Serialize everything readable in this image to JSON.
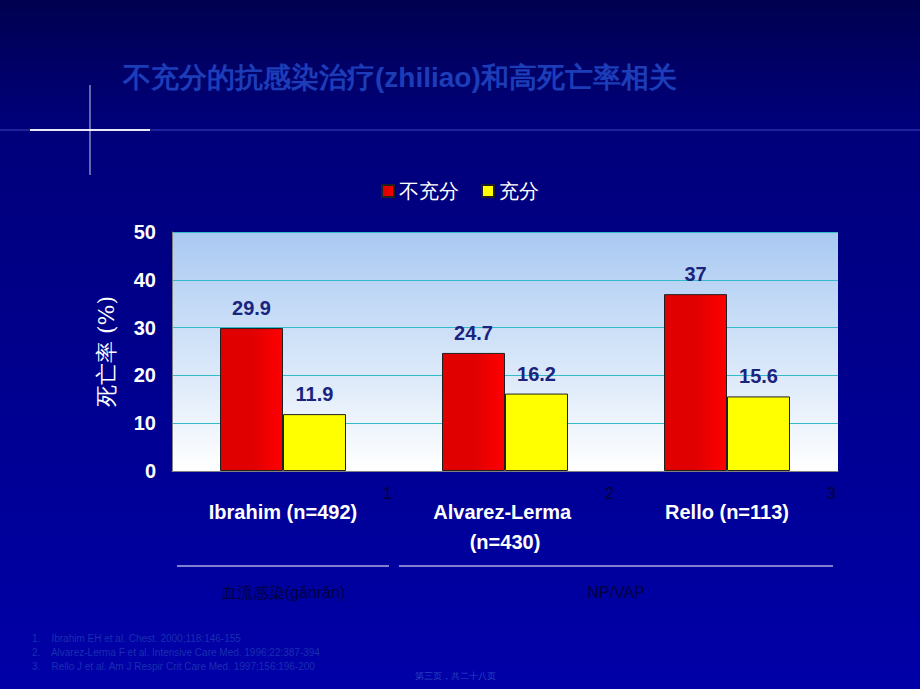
{
  "chart_data": {
    "type": "bar",
    "title": "不充分的抗感染治疗(zhiliao)和高死亡率相关",
    "y_label": "死亡率 (%)",
    "categories": [
      "Ibrahim (n=492)",
      "Alvarez-Lerma (n=430)",
      "Rello (n=113)"
    ],
    "category_notes": [
      "1",
      "2",
      "3"
    ],
    "group_labels": [
      {
        "label": "血流感染(gǎnrǎn)",
        "span": 1
      },
      {
        "label": "NP/VAP",
        "span": 2
      }
    ],
    "series": [
      {
        "name": "不充分",
        "color": "#e00000",
        "values": [
          29.9,
          24.7,
          37
        ]
      },
      {
        "name": "充分",
        "color": "#ffff00",
        "values": [
          11.9,
          16.2,
          15.6
        ]
      }
    ],
    "ylim": [
      0,
      50
    ],
    "yticks": [
      0,
      10,
      20,
      30,
      40,
      50
    ],
    "grid": true,
    "legend": "top",
    "data_labels": true
  },
  "footnotes": [
    "1.    Ibrahim EH et al. Chest. 2000;118:146-155",
    "2.    Alvarez-Lerma F et al. Intensive Care Med. 1996;22:387-394",
    "3.    Rello J et al. Am J Respir Crit Care Med. 1997;156:196-200"
  ],
  "page_footer": "第三页，共二十八页"
}
